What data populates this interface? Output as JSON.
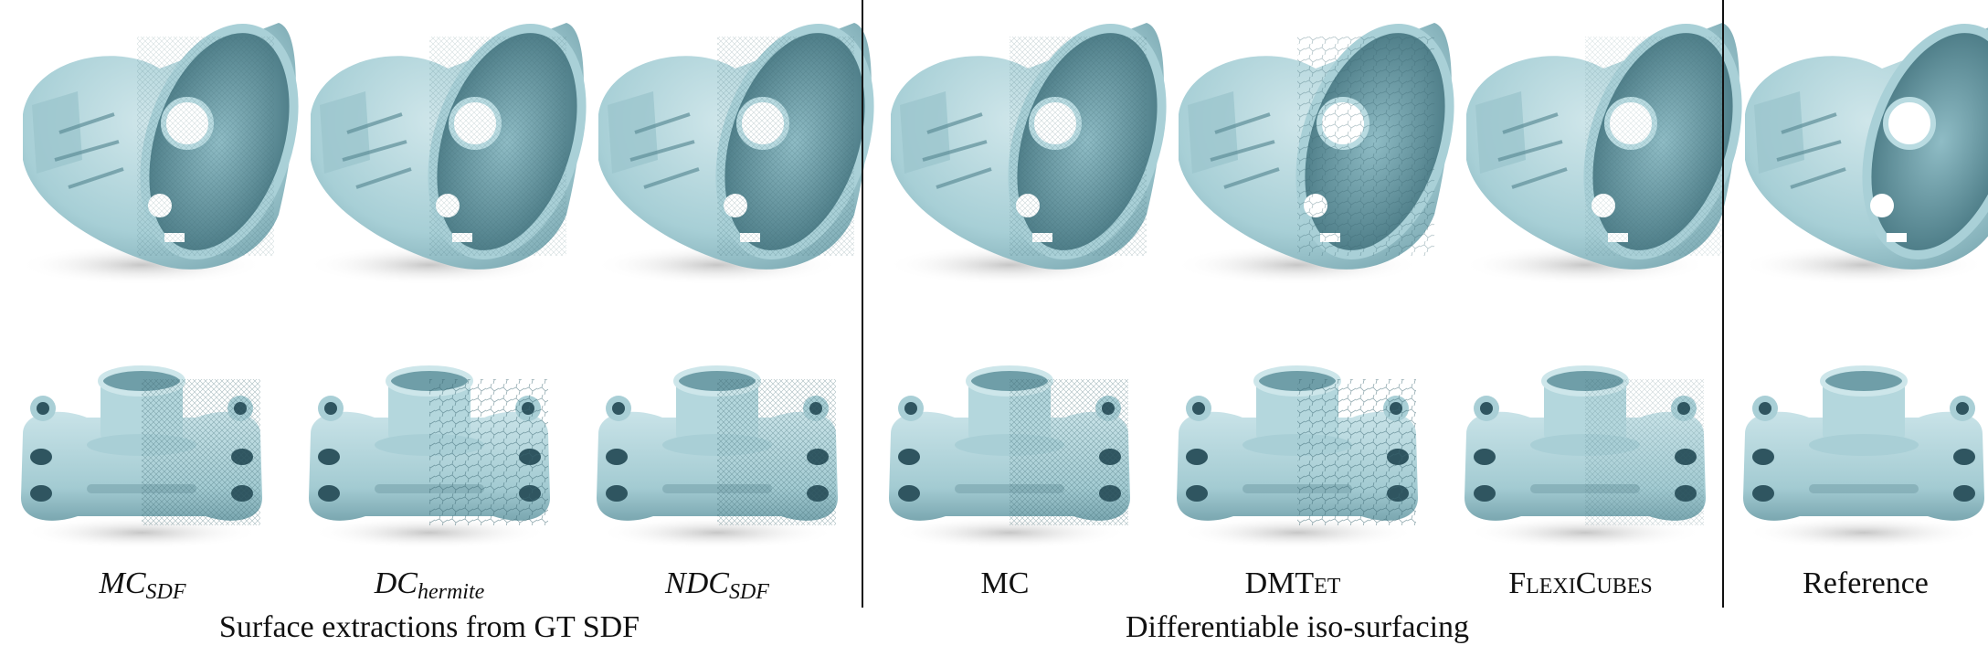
{
  "columns": [
    {
      "base": "MC",
      "sub": "SDF",
      "style": "italic"
    },
    {
      "base": "DC",
      "sub": "hermite",
      "style": "italic"
    },
    {
      "base": "NDC",
      "sub": "SDF",
      "style": "italic"
    },
    {
      "base": "MC",
      "sub": "",
      "style": "plain"
    },
    {
      "base": "DMTet",
      "sub": "",
      "style": "smallcaps"
    },
    {
      "base": "FlexiCubes",
      "sub": "",
      "style": "smallcaps"
    },
    {
      "base": "Reference",
      "sub": "",
      "style": "plain"
    }
  ],
  "groups": [
    {
      "label": "Surface extractions from GT SDF"
    },
    {
      "label": "Differentiable iso-surfacing"
    }
  ],
  "colors": {
    "model_light": "#bfdde2",
    "model_mid": "#93c0c8",
    "model_dark": "#4f7f8a",
    "mesh_line": "#3b6670",
    "shadow": "#c8c8c8",
    "divider": "#111111"
  }
}
